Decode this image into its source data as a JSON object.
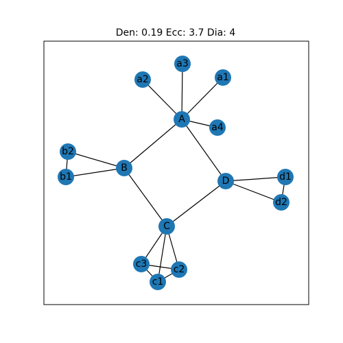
{
  "title": "Den: 0.19  Ecc: 3.7  Dia: 4",
  "colors": {
    "node": "#1f77b4",
    "edge": "#000000",
    "label": "#000000",
    "frame": "#000000",
    "background": "#ffffff"
  },
  "graph": {
    "nodes": [
      "A",
      "a1",
      "a2",
      "a3",
      "a4",
      "B",
      "b1",
      "b2",
      "C",
      "c1",
      "c2",
      "c3",
      "D",
      "d1",
      "d2"
    ],
    "edges": [
      [
        "A",
        "a1"
      ],
      [
        "A",
        "a2"
      ],
      [
        "A",
        "a3"
      ],
      [
        "A",
        "a4"
      ],
      [
        "A",
        "B"
      ],
      [
        "A",
        "D"
      ],
      [
        "B",
        "b1"
      ],
      [
        "B",
        "b2"
      ],
      [
        "b1",
        "b2"
      ],
      [
        "B",
        "C"
      ],
      [
        "C",
        "D"
      ],
      [
        "C",
        "c1"
      ],
      [
        "C",
        "c2"
      ],
      [
        "C",
        "c3"
      ],
      [
        "c1",
        "c2"
      ],
      [
        "c1",
        "c3"
      ],
      [
        "c2",
        "c3"
      ],
      [
        "D",
        "d1"
      ],
      [
        "D",
        "d2"
      ],
      [
        "d1",
        "d2"
      ]
    ]
  }
}
